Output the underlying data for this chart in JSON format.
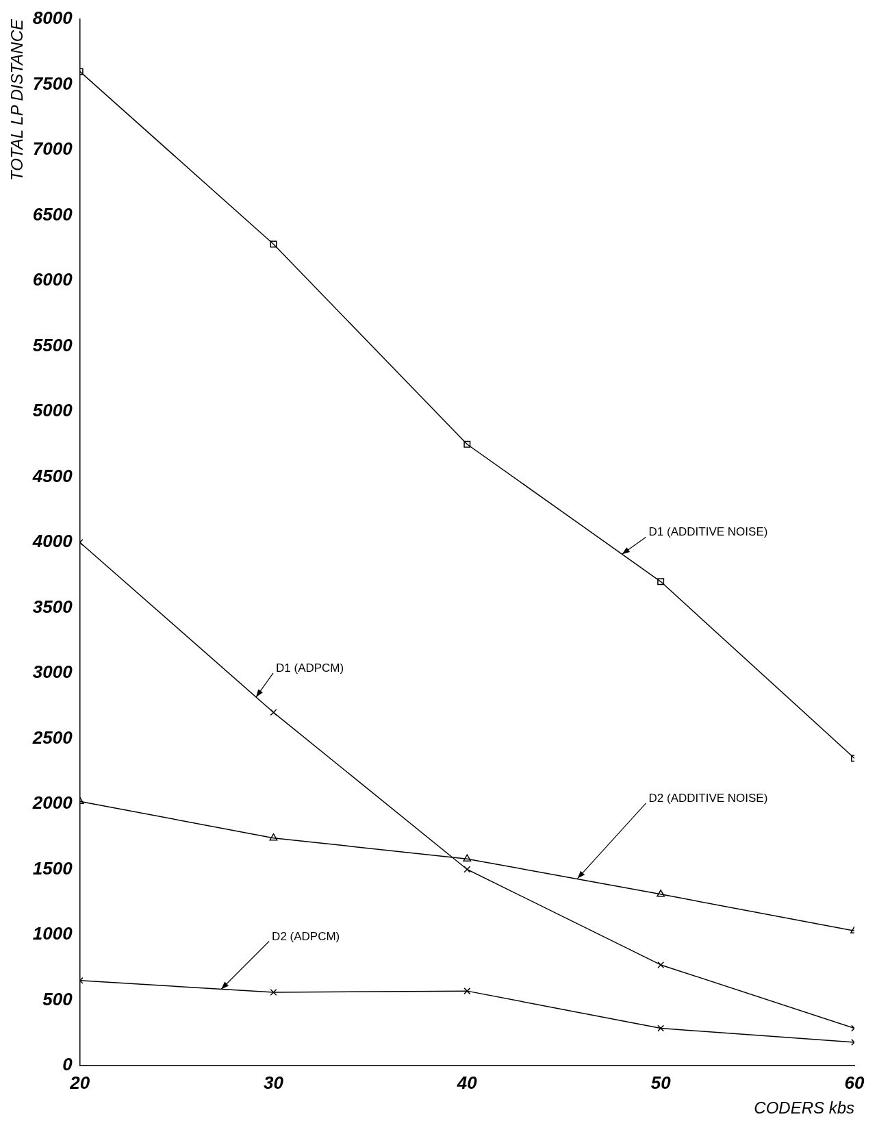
{
  "chart_data": {
    "type": "line",
    "xlabel": "CODERS kbs",
    "ylabel": "TOTAL LP DISTANCE",
    "x": [
      20,
      30,
      40,
      50,
      60
    ],
    "xlim": [
      20,
      60
    ],
    "xticks": [
      20,
      30,
      40,
      50,
      60
    ],
    "ylim": [
      0,
      8000
    ],
    "yticks": [
      0,
      500,
      1000,
      1500,
      2000,
      2500,
      3000,
      3500,
      4000,
      4500,
      5000,
      5500,
      6000,
      6500,
      7000,
      7500,
      8000
    ],
    "grid": false,
    "legend": false,
    "line_style": "solid",
    "series": [
      {
        "color": "#000000",
        "marker": "square",
        "values": [
          7600,
          6280,
          4750,
          3700,
          2350
        ]
      },
      {
        "color": "#000000",
        "marker": "cross",
        "values": [
          4000,
          2700,
          1500,
          770,
          285
        ]
      },
      {
        "color": "#000000",
        "marker": "triangle",
        "values": [
          2020,
          1740,
          1580,
          1310,
          1030
        ]
      },
      {
        "color": "#000000",
        "marker": "cross",
        "values": [
          650,
          560,
          570,
          285,
          178
        ]
      }
    ],
    "annotations": [
      {
        "text": "D1 (ADDITIVE NOISE)",
        "x": 48,
        "y": 3910
      },
      {
        "text": "D1 (ADPCM)",
        "x": 29.1,
        "y": 2817
      },
      {
        "text": "D2 (ADDITIVE NOISE)",
        "x": 45.7,
        "y": 1430
      },
      {
        "text": "D2 (ADPCM)",
        "x": 27.3,
        "y": 584
      }
    ]
  }
}
